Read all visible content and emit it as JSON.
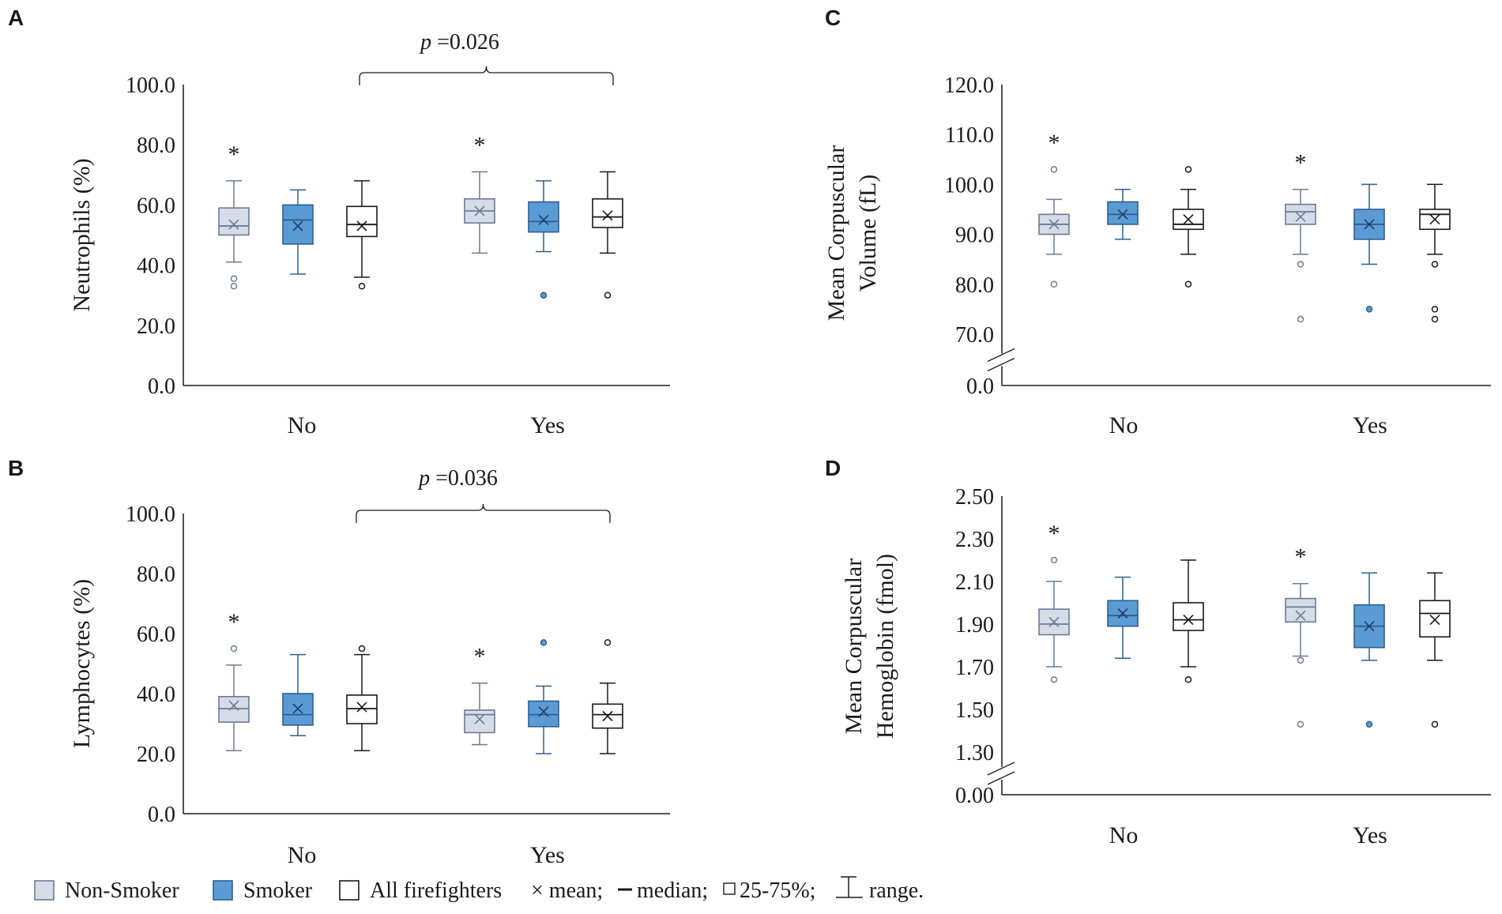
{
  "colors": {
    "non_smoker_fill": "#d6dce7",
    "non_smoker_stroke": "#6a7c97",
    "smoker_fill": "#5b9bd5",
    "smoker_stroke": "#2f5f8f",
    "all_fill": "#ffffff",
    "all_stroke": "#1a1a1a",
    "axis": "#1a1a1a"
  },
  "chart_data": [
    {
      "panel": "A",
      "type": "box",
      "ylabel": [
        "Neutrophils (%)"
      ],
      "ylim": [
        0,
        100
      ],
      "yticks": [
        "0.0",
        "20.0",
        "40.0",
        "60.0",
        "80.0",
        "100.0"
      ],
      "categories": [
        "No",
        "Yes"
      ],
      "p_text": "=0.026",
      "p_label": "p",
      "significance_marker": "*",
      "groups": [
        {
          "category": "No",
          "series": "Non-Smoker",
          "min": 41,
          "q1": 50,
          "median": 53,
          "q3": 59,
          "max": 68,
          "mean": 53.5,
          "outliers": [
            33,
            35.5
          ],
          "star": true
        },
        {
          "category": "No",
          "series": "Smoker",
          "min": 37,
          "q1": 47,
          "median": 55,
          "q3": 60,
          "max": 65,
          "mean": 53,
          "outliers": [],
          "star": false
        },
        {
          "category": "No",
          "series": "All firefighters",
          "min": 36,
          "q1": 49.5,
          "median": 53.5,
          "q3": 59.5,
          "max": 68,
          "mean": 53,
          "outliers": [
            33
          ],
          "star": false
        },
        {
          "category": "Yes",
          "series": "Non-Smoker",
          "min": 44,
          "q1": 54,
          "median": 58,
          "q3": 62,
          "max": 71,
          "mean": 58,
          "outliers": [],
          "star": true
        },
        {
          "category": "Yes",
          "series": "Smoker",
          "min": 44.5,
          "q1": 51,
          "median": 54.5,
          "q3": 61,
          "max": 68,
          "mean": 55,
          "outliers": [
            30
          ],
          "star": false
        },
        {
          "category": "Yes",
          "series": "All firefighters",
          "min": 44,
          "q1": 52.5,
          "median": 56,
          "q3": 62,
          "max": 71,
          "mean": 56.5,
          "outliers": [
            30
          ],
          "star": false
        }
      ]
    },
    {
      "panel": "B",
      "type": "box",
      "ylabel": [
        "Lymphocytes (%)"
      ],
      "ylim": [
        0,
        100
      ],
      "yticks": [
        "0.0",
        "20.0",
        "40.0",
        "60.0",
        "80.0",
        "100.0"
      ],
      "categories": [
        "No",
        "Yes"
      ],
      "p_text": "=0.036",
      "p_label": "p",
      "significance_marker": "*",
      "groups": [
        {
          "category": "No",
          "series": "Non-Smoker",
          "min": 21,
          "q1": 30.5,
          "median": 35,
          "q3": 39,
          "max": 49.5,
          "mean": 36,
          "outliers": [
            55
          ],
          "star": true
        },
        {
          "category": "No",
          "series": "Smoker",
          "min": 26,
          "q1": 29.5,
          "median": 33,
          "q3": 40,
          "max": 53,
          "mean": 35,
          "outliers": [],
          "star": false
        },
        {
          "category": "No",
          "series": "All firefighters",
          "min": 21,
          "q1": 30,
          "median": 35,
          "q3": 39.5,
          "max": 53,
          "mean": 35.5,
          "outliers": [
            55
          ],
          "star": false
        },
        {
          "category": "Yes",
          "series": "Non-Smoker",
          "min": 23,
          "q1": 27,
          "median": 33,
          "q3": 34.5,
          "max": 43.5,
          "mean": 31.5,
          "outliers": [],
          "star": true
        },
        {
          "category": "Yes",
          "series": "Smoker",
          "min": 20,
          "q1": 29,
          "median": 33,
          "q3": 37.5,
          "max": 42.5,
          "mean": 34,
          "outliers": [
            57
          ],
          "star": false
        },
        {
          "category": "Yes",
          "series": "All firefighters",
          "min": 20,
          "q1": 28.5,
          "median": 33,
          "q3": 36.5,
          "max": 43.5,
          "mean": 32.5,
          "outliers": [
            57
          ],
          "star": false
        }
      ]
    },
    {
      "panel": "C",
      "type": "box",
      "ylabel": [
        "Mean Corpuscular",
        "Volume (fL)"
      ],
      "ylim": [
        70,
        120
      ],
      "axis_break": true,
      "yticks": [
        "70.0",
        "80.0",
        "90.0",
        "100.0",
        "110.0",
        "120.0"
      ],
      "zero_tick": "0.0",
      "categories": [
        "No",
        "Yes"
      ],
      "significance_marker": "*",
      "groups": [
        {
          "category": "No",
          "series": "Non-Smoker",
          "min": 86,
          "q1": 90,
          "median": 92,
          "q3": 94,
          "max": 97,
          "mean": 92,
          "outliers": [
            80,
            103
          ],
          "star": true
        },
        {
          "category": "No",
          "series": "Smoker",
          "min": 89,
          "q1": 92,
          "median": 94,
          "q3": 96.5,
          "max": 99,
          "mean": 94,
          "outliers": [],
          "star": false
        },
        {
          "category": "No",
          "series": "All firefighters",
          "min": 86,
          "q1": 91,
          "median": 92,
          "q3": 95,
          "max": 99,
          "mean": 93,
          "outliers": [
            80,
            103
          ],
          "star": false
        },
        {
          "category": "Yes",
          "series": "Non-Smoker",
          "min": 86,
          "q1": 92,
          "median": 94.5,
          "q3": 96,
          "max": 99,
          "mean": 93.5,
          "outliers": [
            73,
            84
          ],
          "star": true
        },
        {
          "category": "Yes",
          "series": "Smoker",
          "min": 84,
          "q1": 89,
          "median": 92,
          "q3": 95,
          "max": 100,
          "mean": 92,
          "outliers": [
            75
          ],
          "star": false
        },
        {
          "category": "Yes",
          "series": "All firefighters",
          "min": 86,
          "q1": 91,
          "median": 94,
          "q3": 95,
          "max": 100,
          "mean": 93,
          "outliers": [
            73,
            75,
            84
          ],
          "star": false
        }
      ]
    },
    {
      "panel": "D",
      "type": "box",
      "ylabel": [
        "Mean Corpuscular",
        "Hemoglobin (fmol)"
      ],
      "ylim": [
        1.3,
        2.5
      ],
      "axis_break": true,
      "yticks": [
        "1.30",
        "1.50",
        "1.70",
        "1.90",
        "2.10",
        "2.30",
        "2.50"
      ],
      "zero_tick": "0.00",
      "categories": [
        "No",
        "Yes"
      ],
      "significance_marker": "*",
      "groups": [
        {
          "category": "No",
          "series": "Non-Smoker",
          "min": 1.7,
          "q1": 1.85,
          "median": 1.9,
          "q3": 1.97,
          "max": 2.1,
          "mean": 1.91,
          "outliers": [
            1.64,
            2.2
          ],
          "star": true
        },
        {
          "category": "No",
          "series": "Smoker",
          "min": 1.74,
          "q1": 1.89,
          "median": 1.94,
          "q3": 2.01,
          "max": 2.12,
          "mean": 1.95,
          "outliers": [],
          "star": false
        },
        {
          "category": "No",
          "series": "All firefighters",
          "min": 1.7,
          "q1": 1.87,
          "median": 1.92,
          "q3": 2.0,
          "max": 2.2,
          "mean": 1.92,
          "outliers": [
            1.64
          ],
          "star": false
        },
        {
          "category": "Yes",
          "series": "Non-Smoker",
          "min": 1.75,
          "q1": 1.91,
          "median": 1.98,
          "q3": 2.02,
          "max": 2.09,
          "mean": 1.94,
          "outliers": [
            1.43,
            1.73
          ],
          "star": true
        },
        {
          "category": "Yes",
          "series": "Smoker",
          "min": 1.73,
          "q1": 1.79,
          "median": 1.89,
          "q3": 1.99,
          "max": 2.14,
          "mean": 1.89,
          "outliers": [
            1.43
          ],
          "star": false
        },
        {
          "category": "Yes",
          "series": "All firefighters",
          "min": 1.73,
          "q1": 1.84,
          "median": 1.95,
          "q3": 2.01,
          "max": 2.14,
          "mean": 1.92,
          "outliers": [
            1.43
          ],
          "star": false
        }
      ]
    }
  ],
  "legend": {
    "items": [
      {
        "label": "Non-Smoker",
        "key": "non_smoker"
      },
      {
        "label": "Smoker",
        "key": "smoker"
      },
      {
        "label": "All firefighters",
        "key": "all"
      }
    ],
    "mean_text": "× mean;",
    "median_text": "median;",
    "box_text": "25-75%;",
    "range_text": "range."
  }
}
